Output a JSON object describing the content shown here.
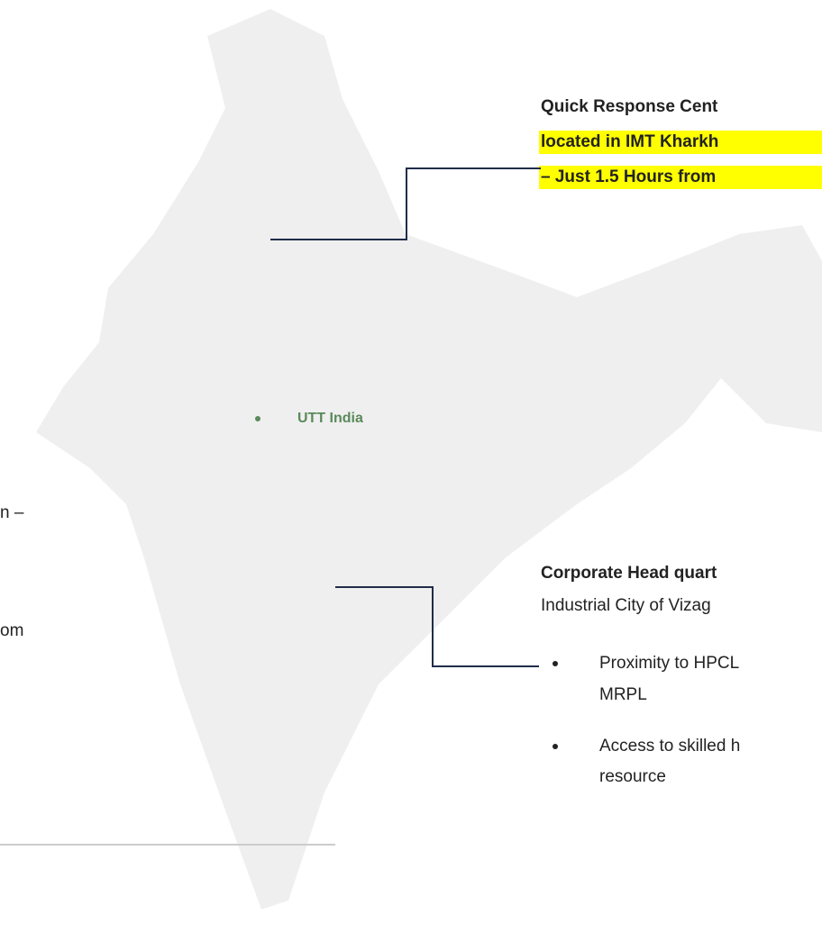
{
  "top_callout": {
    "title": "Quick Response Cent",
    "lines": [
      "located in IMT Kharkh",
      "– Just 1.5 Hours from"
    ]
  },
  "map_label": "UTT India",
  "left_fragments": [
    "n –",
    "om"
  ],
  "bottom_callout": {
    "title": "Corporate Head quart",
    "subtitle": "Industrial City of Vizag",
    "bullets": [
      [
        "Proximity to HPCL",
        "MRPL"
      ],
      [
        "Access to skilled h",
        "resource"
      ]
    ]
  }
}
